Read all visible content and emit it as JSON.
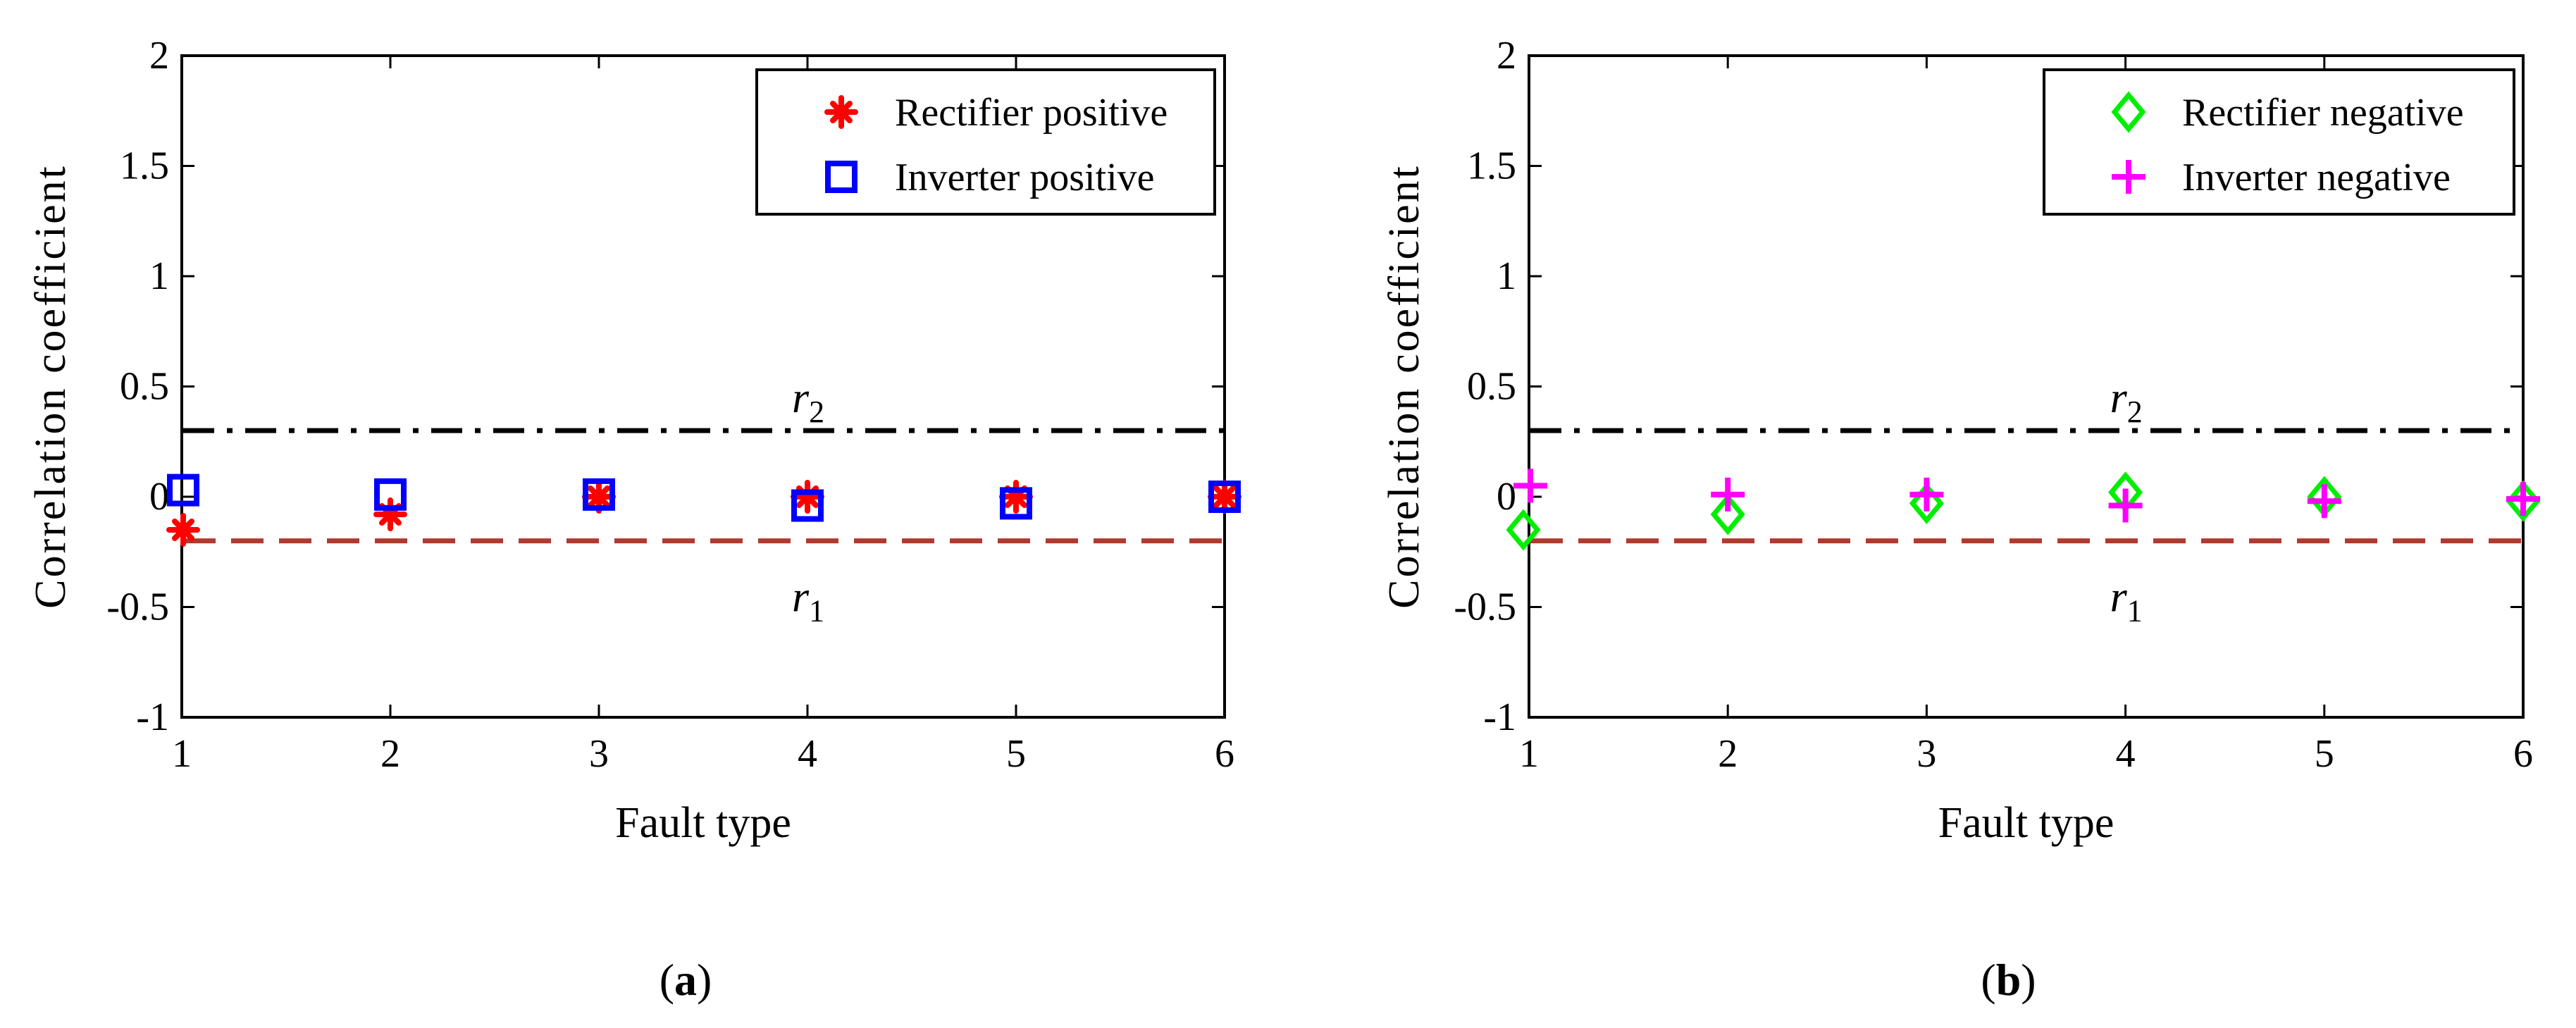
{
  "chart_data": [
    {
      "type": "scatter",
      "panel": "a",
      "caption": "a",
      "title": "",
      "xlabel": "Fault type",
      "ylabel": "Correlation coefficient",
      "xlim": [
        1,
        6
      ],
      "ylim": [
        -1,
        2
      ],
      "xticks": [
        1,
        2,
        3,
        4,
        5,
        6
      ],
      "yticks": [
        -1,
        -0.5,
        0,
        0.5,
        1,
        1.5,
        2
      ],
      "ytick_labels": [
        "-1",
        "-0.5",
        "0",
        "0.5",
        "1",
        "1.5",
        "2"
      ],
      "grid": false,
      "legend_position": "top-right",
      "series": [
        {
          "name": "Rectifier positive",
          "marker": "asterisk",
          "color": "#ff0000",
          "x": [
            1,
            2,
            3,
            4,
            5,
            6
          ],
          "y": [
            -0.15,
            -0.08,
            0.0,
            0.0,
            0.0,
            0.0
          ]
        },
        {
          "name": "Inverter positive",
          "marker": "square",
          "color": "#0000ff",
          "x": [
            1,
            2,
            3,
            4,
            5,
            6
          ],
          "y": [
            0.03,
            0.01,
            0.01,
            -0.04,
            -0.03,
            0.0
          ]
        }
      ],
      "thresholds": [
        {
          "label": "r",
          "sub": "2",
          "value": 0.3,
          "style": "dash-dot",
          "color": "#000000",
          "label_x": 4,
          "label_pos": "above"
        },
        {
          "label": "r",
          "sub": "1",
          "value": -0.2,
          "style": "dashed",
          "color": "#b03a2e",
          "label_x": 4,
          "label_pos": "below"
        }
      ]
    },
    {
      "type": "scatter",
      "panel": "b",
      "caption": "b",
      "title": "",
      "xlabel": "Fault type",
      "ylabel": "Correlation coefficient",
      "xlim": [
        1,
        6
      ],
      "ylim": [
        -1,
        2
      ],
      "xticks": [
        1,
        2,
        3,
        4,
        5,
        6
      ],
      "yticks": [
        -1,
        -0.5,
        0,
        0.5,
        1,
        1.5,
        2
      ],
      "ytick_labels": [
        "-1",
        "-0.5",
        "0",
        "0.5",
        "1",
        "1.5",
        "2"
      ],
      "grid": false,
      "legend_position": "top-right",
      "series": [
        {
          "name": "Rectifier negative",
          "marker": "diamond",
          "color": "#00ee00",
          "x": [
            1,
            2,
            3,
            4,
            5,
            6
          ],
          "y": [
            -0.15,
            -0.08,
            -0.03,
            0.02,
            0.0,
            -0.02
          ]
        },
        {
          "name": "Inverter negative",
          "marker": "plus",
          "color": "#ff00ff",
          "x": [
            1,
            2,
            3,
            4,
            5,
            6
          ],
          "y": [
            0.05,
            0.01,
            0.01,
            -0.04,
            -0.02,
            -0.01
          ]
        }
      ],
      "thresholds": [
        {
          "label": "r",
          "sub": "2",
          "value": 0.3,
          "style": "dash-dot",
          "color": "#000000",
          "label_x": 4,
          "label_pos": "above"
        },
        {
          "label": "r",
          "sub": "1",
          "value": -0.2,
          "style": "dashed",
          "color": "#b03a2e",
          "label_x": 4,
          "label_pos": "below"
        }
      ]
    }
  ]
}
